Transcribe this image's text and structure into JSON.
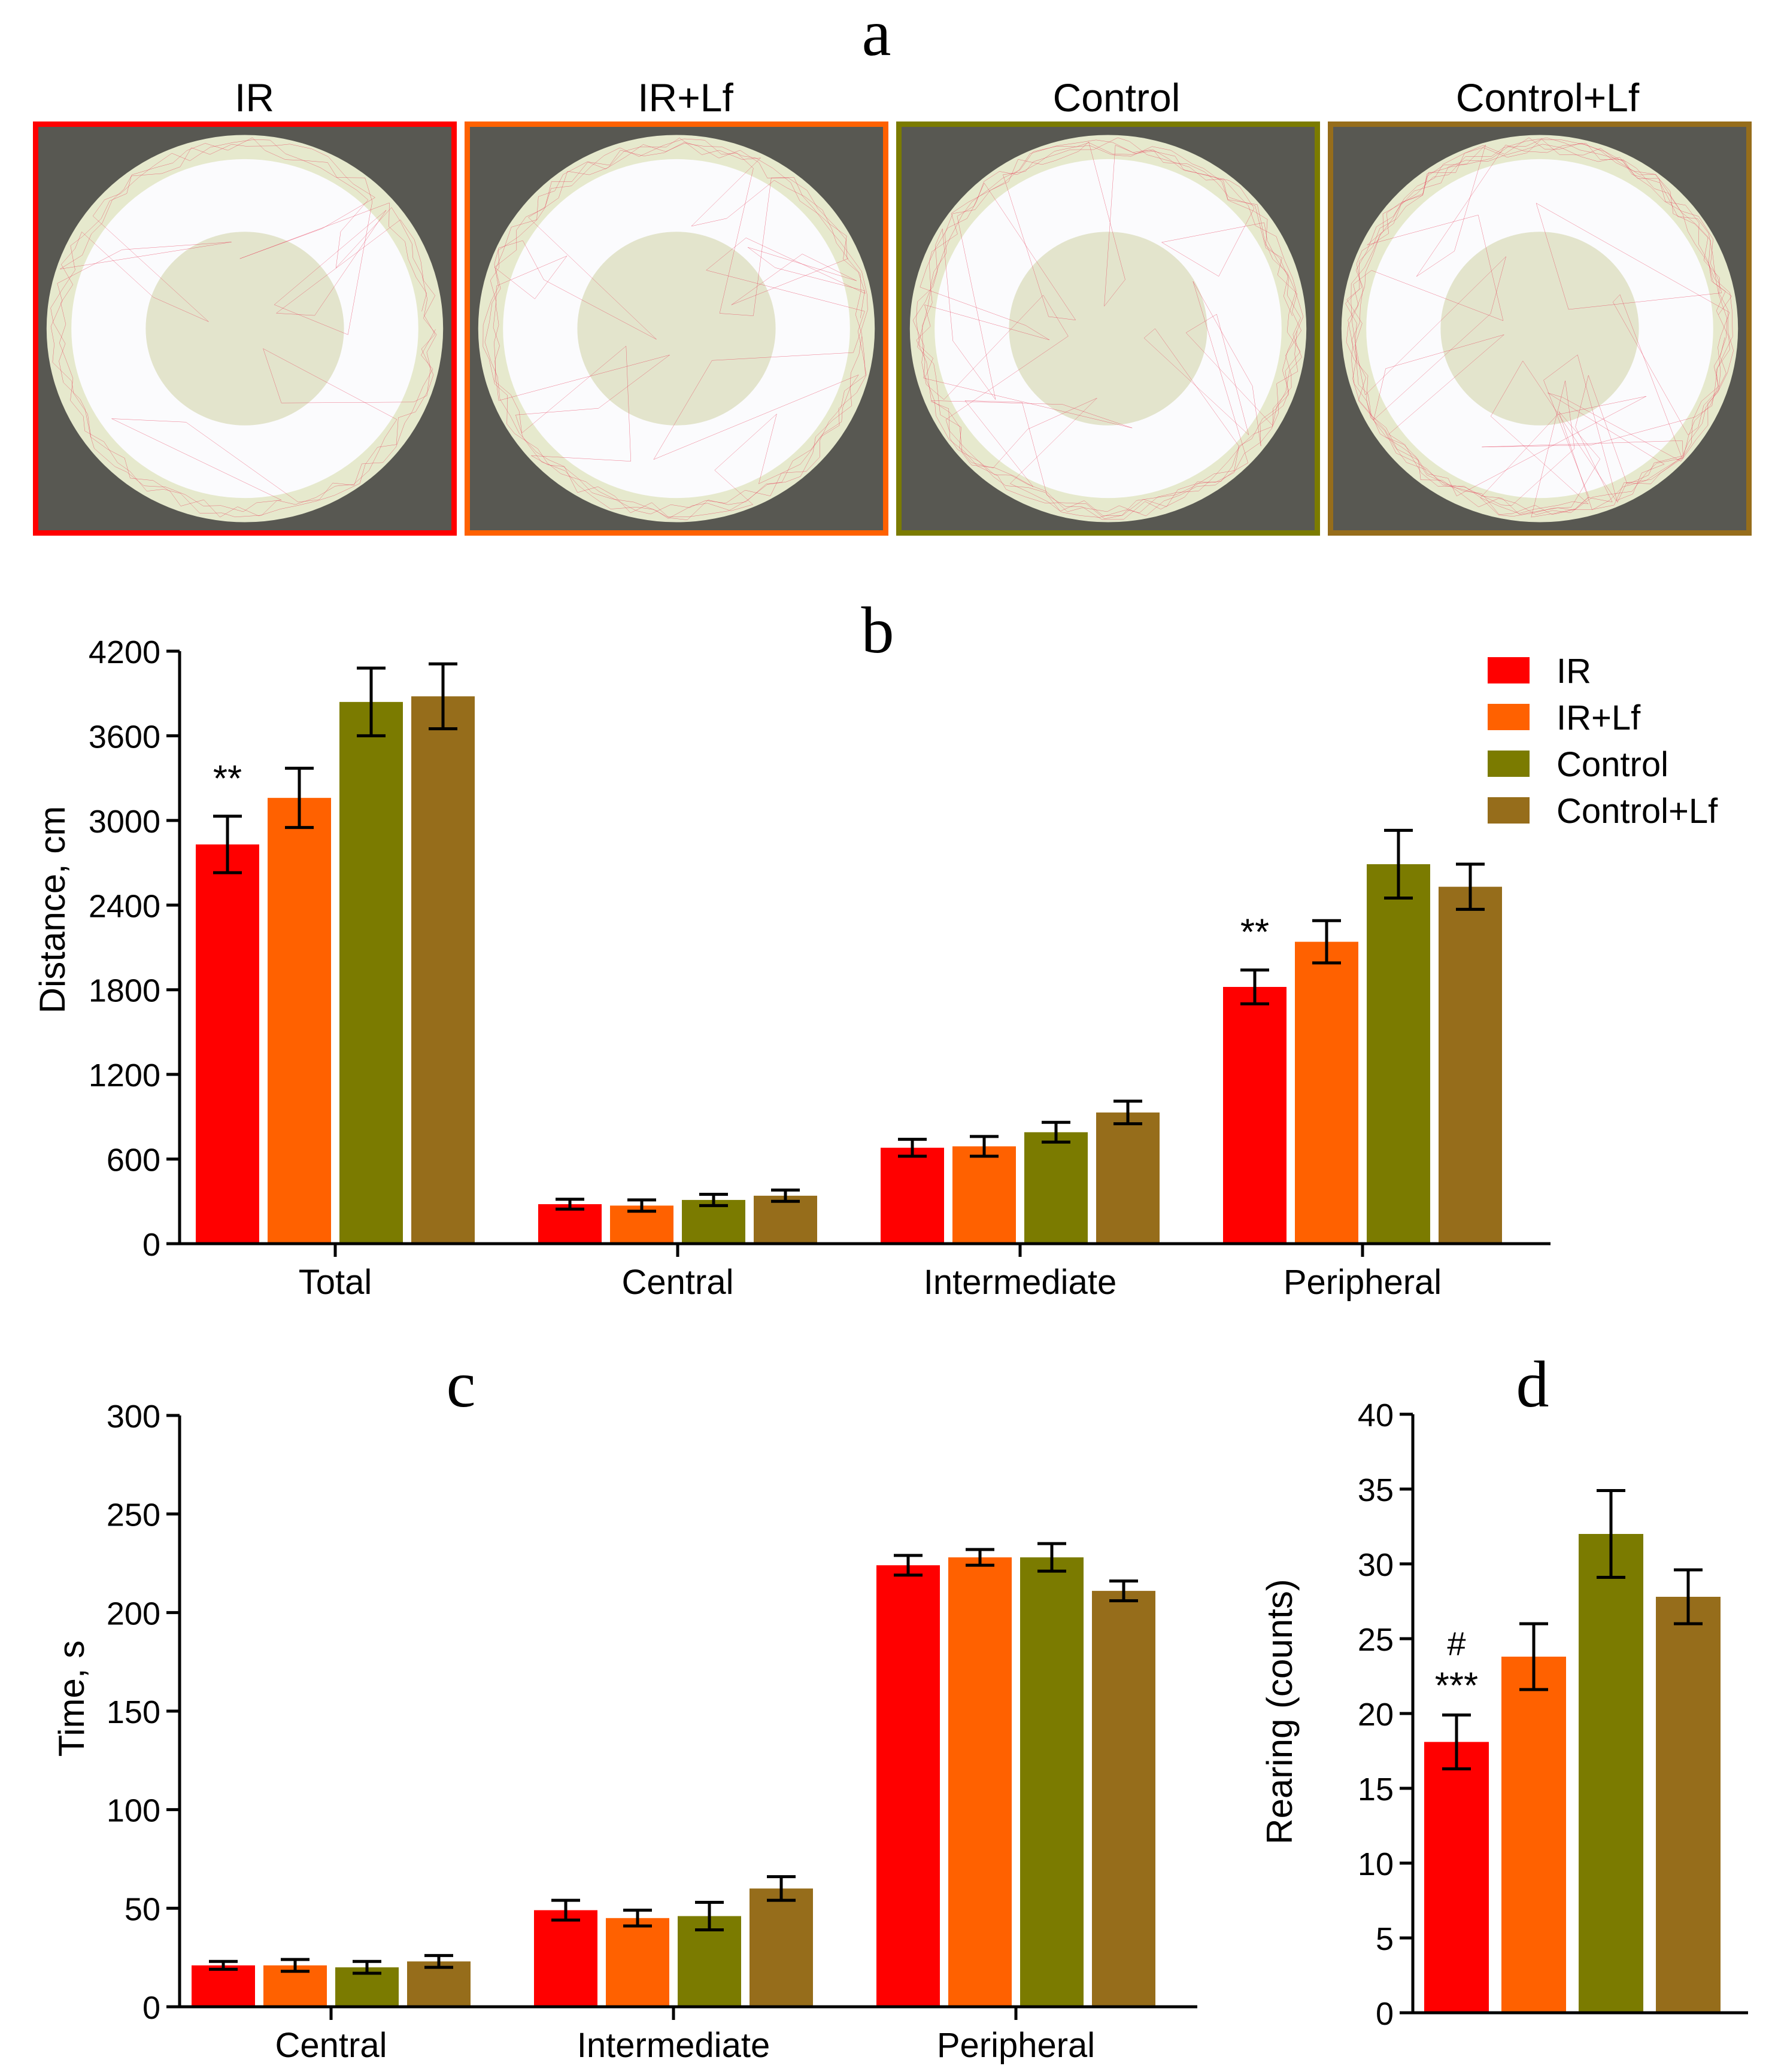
{
  "colors": {
    "IR": "#ff0000",
    "IR+Lf": "#ff6100",
    "Control": "#7b7b00",
    "Control+Lf": "#966d1b"
  },
  "panel_a": {
    "letter": "a",
    "groups": [
      {
        "label": "IR",
        "color": "#ff0000"
      },
      {
        "label": "IR+Lf",
        "color": "#ff6100"
      },
      {
        "label": "Control",
        "color": "#7b7b00"
      },
      {
        "label": "Control+Lf",
        "color": "#966d1b"
      }
    ]
  },
  "chart_data": [
    {
      "id": "b",
      "type": "bar",
      "title": "b",
      "xlabel": "",
      "ylabel": "Distance, cm",
      "ylim": [
        0,
        4200
      ],
      "yticks": [
        0,
        600,
        1200,
        1800,
        2400,
        3000,
        3600,
        4200
      ],
      "categories": [
        "Total",
        "Central",
        "Intermediate",
        "Peripheral"
      ],
      "legend": "top-right",
      "series": [
        {
          "name": "IR",
          "color": "#ff0000",
          "values": [
            2830,
            280,
            680,
            1820
          ],
          "errors": [
            200,
            35,
            60,
            120
          ]
        },
        {
          "name": "IR+Lf",
          "color": "#ff6100",
          "values": [
            3160,
            270,
            690,
            2140
          ],
          "errors": [
            210,
            40,
            70,
            150
          ]
        },
        {
          "name": "Control",
          "color": "#7b7b00",
          "values": [
            3840,
            310,
            790,
            2690
          ],
          "errors": [
            240,
            40,
            70,
            240
          ]
        },
        {
          "name": "Control+Lf",
          "color": "#966d1b",
          "values": [
            3880,
            340,
            930,
            2530
          ],
          "errors": [
            230,
            40,
            80,
            160
          ]
        }
      ],
      "annotations": [
        {
          "text": "**",
          "category": "Total",
          "series": "IR"
        },
        {
          "text": "**",
          "category": "Peripheral",
          "series": "IR"
        }
      ]
    },
    {
      "id": "c",
      "type": "bar",
      "title": "c",
      "xlabel": "",
      "ylabel": "Time, s",
      "ylim": [
        0,
        300
      ],
      "yticks": [
        0,
        50,
        100,
        150,
        200,
        250,
        300
      ],
      "categories": [
        "Central",
        "Intermediate",
        "Peripheral"
      ],
      "series": [
        {
          "name": "IR",
          "color": "#ff0000",
          "values": [
            21,
            49,
            224
          ],
          "errors": [
            2,
            5,
            5
          ]
        },
        {
          "name": "IR+Lf",
          "color": "#ff6100",
          "values": [
            21,
            45,
            228
          ],
          "errors": [
            3,
            4,
            4
          ]
        },
        {
          "name": "Control",
          "color": "#7b7b00",
          "values": [
            20,
            46,
            228
          ],
          "errors": [
            3,
            7,
            7
          ]
        },
        {
          "name": "Control+Lf",
          "color": "#966d1b",
          "values": [
            23,
            60,
            211
          ],
          "errors": [
            3,
            6,
            5
          ]
        }
      ]
    },
    {
      "id": "d",
      "type": "bar",
      "title": "d",
      "xlabel": "",
      "ylabel": "Rearing (counts)",
      "ylim": [
        0,
        40
      ],
      "yticks": [
        0,
        5,
        10,
        15,
        20,
        25,
        30,
        35,
        40
      ],
      "categories": [
        "IR",
        "IR+Lf",
        "Control",
        "Control+Lf"
      ],
      "values": [
        18.1,
        23.8,
        32.0,
        27.8
      ],
      "errors": [
        1.8,
        2.2,
        2.9,
        1.8
      ],
      "colors": [
        "#ff0000",
        "#ff6100",
        "#7b7b00",
        "#966d1b"
      ],
      "annotations": [
        {
          "text": "#",
          "category": "IR"
        },
        {
          "text": "***",
          "category": "IR"
        }
      ]
    }
  ]
}
